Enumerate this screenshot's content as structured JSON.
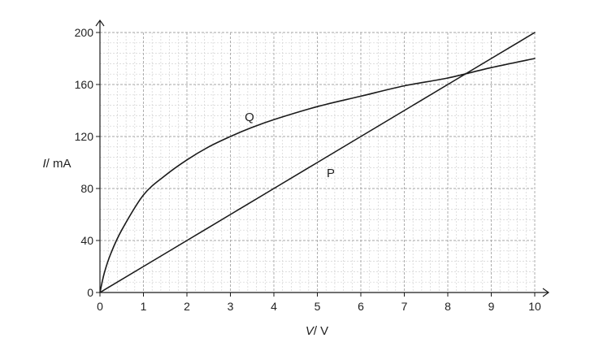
{
  "chart_data": {
    "type": "line",
    "title": "",
    "xlabel": {
      "symbol": "V",
      "unit": "/ V"
    },
    "ylabel": {
      "symbol": "I",
      "unit": "/ mA"
    },
    "xlim": [
      0,
      10
    ],
    "ylim": [
      0,
      200
    ],
    "x_ticks": [
      "0",
      "1",
      "2",
      "3",
      "4",
      "5",
      "6",
      "7",
      "8",
      "9",
      "10"
    ],
    "y_ticks": [
      "0",
      "40",
      "80",
      "120",
      "160",
      "200"
    ],
    "grid": true,
    "legend": "none",
    "series": [
      {
        "name": "P",
        "x": [
          0,
          1,
          2,
          3,
          4,
          5,
          6,
          7,
          8,
          9,
          10
        ],
        "y": [
          0,
          20,
          40,
          60,
          80,
          100,
          120,
          140,
          160,
          180,
          200
        ]
      },
      {
        "name": "Q",
        "x": [
          0,
          0.1,
          0.25,
          0.5,
          1,
          1.5,
          2,
          2.5,
          3,
          3.5,
          4,
          5,
          6,
          7,
          8,
          9,
          10
        ],
        "y": [
          0,
          15,
          30,
          48,
          75,
          90,
          102,
          112,
          120,
          127,
          133,
          143,
          151,
          159,
          165,
          173,
          180
        ]
      }
    ],
    "colors": {
      "line": "#1a1a1a",
      "axis": "#1a1a1a",
      "grid_major": "#a6a6a6",
      "grid_minor": "#d2d2d2"
    }
  }
}
